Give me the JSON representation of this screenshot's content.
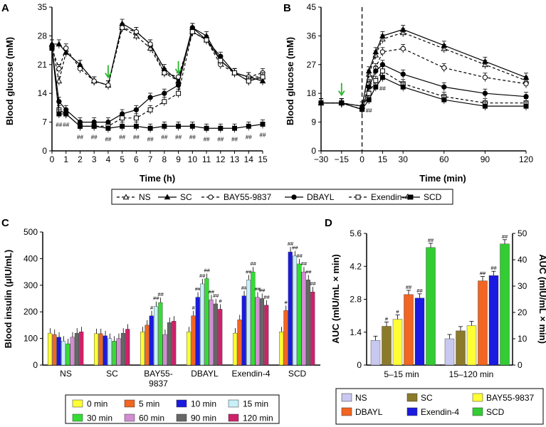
{
  "colors": {
    "axis": "#000000",
    "marker_white": "#ffffff",
    "arrow": "#2db52d",
    "bar_0": "#ffff33",
    "bar_5": "#f26522",
    "bar_10": "#1a1ae0",
    "bar_15": "#c8f0f8",
    "bar_30": "#33dd33",
    "bar_60": "#d28cd2",
    "bar_90": "#666666",
    "bar_120": "#d0206a",
    "auc_ns": "#c8c8f0",
    "auc_sc": "#8b7a2a",
    "auc_bay": "#ffff33",
    "auc_dbayl": "#f26522",
    "auc_exendin": "#1a1ae0",
    "auc_scd": "#33cc33"
  },
  "legend_top": {
    "items": [
      {
        "label": "NS",
        "line": "dashed",
        "marker": "triangle-open"
      },
      {
        "label": "SC",
        "line": "solid",
        "marker": "triangle-filled"
      },
      {
        "label": "BAY55-9837",
        "line": "dashed",
        "marker": "circle-open"
      },
      {
        "label": "DBAYL",
        "line": "solid",
        "marker": "circle-filled"
      },
      {
        "label": "Exendin-4",
        "line": "dashed",
        "marker": "square-open"
      },
      {
        "label": "SCD",
        "line": "solid",
        "marker": "square-filled"
      }
    ]
  },
  "legend_c": {
    "items": [
      {
        "label": "0 min",
        "color_key": "bar_0"
      },
      {
        "label": "5 min",
        "color_key": "bar_5"
      },
      {
        "label": "10 min",
        "color_key": "bar_10"
      },
      {
        "label": "15 min",
        "color_key": "bar_15"
      },
      {
        "label": "30 min",
        "color_key": "bar_30"
      },
      {
        "label": "60 min",
        "color_key": "bar_60"
      },
      {
        "label": "90 min",
        "color_key": "bar_90"
      },
      {
        "label": "120 min",
        "color_key": "bar_120"
      }
    ]
  },
  "legend_d": {
    "items": [
      {
        "label": "NS",
        "color_key": "auc_ns"
      },
      {
        "label": "SC",
        "color_key": "auc_sc"
      },
      {
        "label": "BAY55-9837",
        "color_key": "auc_bay"
      },
      {
        "label": "DBAYL",
        "color_key": "auc_dbayl"
      },
      {
        "label": "Exendin-4",
        "color_key": "auc_exendin"
      },
      {
        "label": "SCD",
        "color_key": "auc_scd"
      }
    ]
  },
  "chart_data": [
    {
      "panel": "A",
      "type": "line",
      "xlabel": "Time (h)",
      "ylabel": "Blood glucose (mM)",
      "xlim": [
        0,
        15
      ],
      "ylim": [
        0,
        35
      ],
      "xticks": [
        0,
        1,
        2,
        3,
        4,
        5,
        6,
        7,
        8,
        9,
        10,
        11,
        12,
        13,
        14,
        15
      ],
      "yticks": [
        0,
        7,
        14,
        21,
        28,
        35
      ],
      "arrows_at": [
        4,
        9
      ],
      "annotation_text": "##",
      "annotation_x": [
        0.5,
        1,
        2,
        3,
        4,
        5,
        6,
        7,
        8,
        9,
        10,
        11,
        12,
        13,
        14,
        15
      ],
      "series": [
        {
          "name": "NS",
          "x": [
            0,
            0.5,
            1,
            2,
            3,
            4,
            5,
            6,
            7,
            8,
            9,
            10,
            11,
            12,
            13,
            14,
            15
          ],
          "y": [
            26,
            17,
            24,
            21,
            17,
            16,
            30,
            28,
            25,
            19,
            17,
            29,
            27,
            22,
            19,
            18,
            18
          ]
        },
        {
          "name": "SC",
          "x": [
            0,
            0.5,
            1,
            2,
            3,
            4,
            5,
            6,
            7,
            8,
            9,
            10,
            11,
            12,
            13,
            14,
            15
          ],
          "y": [
            26,
            26,
            24,
            21,
            17,
            16,
            31,
            29,
            26,
            20,
            17,
            30,
            28,
            22,
            19,
            18,
            17
          ]
        },
        {
          "name": "BAY55-9837",
          "x": [
            0,
            0.5,
            1,
            2,
            3,
            4,
            5,
            6,
            7,
            8,
            9,
            10,
            11,
            12,
            13,
            14,
            15
          ],
          "y": [
            25,
            20,
            25,
            20,
            17,
            16,
            30,
            29,
            26,
            19,
            18,
            29,
            27,
            21,
            19,
            18,
            19
          ]
        },
        {
          "name": "DBAYL",
          "x": [
            0,
            0.5,
            1,
            2,
            3,
            4,
            5,
            6,
            7,
            8,
            9,
            10,
            11,
            12,
            13,
            14,
            15
          ],
          "y": [
            25,
            12,
            10,
            7,
            7,
            7,
            9,
            10,
            13,
            14,
            16,
            30,
            27,
            23,
            19,
            17,
            18
          ]
        },
        {
          "name": "Exendin-4",
          "x": [
            0,
            0.5,
            1,
            2,
            3,
            4,
            5,
            6,
            7,
            8,
            9,
            10,
            11,
            12,
            13,
            14,
            15
          ],
          "y": [
            25,
            10,
            9,
            6,
            6,
            6,
            8,
            8,
            10,
            12,
            14,
            29,
            27,
            22,
            19,
            17,
            18
          ]
        },
        {
          "name": "SCD",
          "x": [
            0,
            0.5,
            1,
            2,
            3,
            4,
            5,
            6,
            7,
            8,
            9,
            10,
            11,
            12,
            13,
            14,
            15
          ],
          "y": [
            25,
            9,
            9,
            6,
            6,
            5.5,
            6,
            6,
            5.5,
            6,
            6,
            6,
            5.5,
            5.5,
            5.5,
            6,
            6.5
          ]
        }
      ]
    },
    {
      "panel": "B",
      "type": "line",
      "xlabel": "Time (min)",
      "ylabel": "Blood glucose (mM)",
      "xlim": [
        -30,
        120
      ],
      "ylim": [
        0,
        45
      ],
      "xticks": [
        -30,
        -15,
        0,
        15,
        30,
        60,
        90,
        120
      ],
      "xtick_labels": [
        "−30",
        "−15",
        "0",
        "15",
        "30",
        "60",
        "90",
        "120"
      ],
      "yticks": [
        0,
        9,
        18,
        27,
        36,
        45
      ],
      "arrows_at": [
        -15
      ],
      "annotation_text": "##",
      "annotation_x": [
        5,
        15
      ],
      "series": [
        {
          "name": "NS",
          "x": [
            -30,
            -15,
            0,
            5,
            10,
            15,
            30,
            60,
            90,
            120
          ],
          "y": [
            15,
            15,
            14,
            24,
            30,
            35,
            37,
            32,
            27,
            22
          ]
        },
        {
          "name": "SC",
          "x": [
            -30,
            -15,
            0,
            5,
            10,
            15,
            30,
            60,
            90,
            120
          ],
          "y": [
            15,
            15,
            14,
            25,
            31,
            36,
            38,
            33,
            28,
            23
          ]
        },
        {
          "name": "BAY55-9837",
          "x": [
            -30,
            -15,
            0,
            5,
            10,
            15,
            30,
            60,
            90,
            120
          ],
          "y": [
            15,
            15,
            13,
            21,
            26,
            31,
            32,
            26,
            23,
            21
          ]
        },
        {
          "name": "DBAYL",
          "x": [
            -30,
            -15,
            0,
            5,
            10,
            15,
            30,
            60,
            90,
            120
          ],
          "y": [
            15,
            15,
            13,
            20,
            25,
            27,
            24,
            20,
            18,
            17
          ]
        },
        {
          "name": "Exendin-4",
          "x": [
            -30,
            -15,
            0,
            5,
            10,
            15,
            30,
            60,
            90,
            120
          ],
          "y": [
            15,
            15,
            13,
            18,
            22,
            25,
            21,
            17,
            15,
            15
          ]
        },
        {
          "name": "SCD",
          "x": [
            -30,
            -15,
            0,
            5,
            10,
            15,
            30,
            60,
            90,
            120
          ],
          "y": [
            15,
            15,
            13,
            16,
            20,
            23,
            20,
            16,
            14,
            14
          ]
        }
      ]
    },
    {
      "panel": "C",
      "type": "bar",
      "ylabel": "Blood insulin (μIU/mL)",
      "ylim": [
        0,
        500
      ],
      "yticks": [
        0,
        100,
        200,
        300,
        400,
        500
      ],
      "categories": [
        "NS",
        "SC",
        "BAY55-\n9837",
        "DBAYL",
        "Exendin-4",
        "SCD"
      ],
      "time_points": [
        "0 min",
        "5 min",
        "10 min",
        "15 min",
        "30 min",
        "60 min",
        "90 min",
        "120 min"
      ],
      "values": [
        [
          120,
          115,
          105,
          90,
          80,
          105,
          120,
          125
        ],
        [
          118,
          118,
          110,
          100,
          90,
          100,
          120,
          135
        ],
        [
          125,
          150,
          185,
          220,
          235,
          115,
          160,
          165
        ],
        [
          125,
          185,
          255,
          305,
          325,
          245,
          230,
          210
        ],
        [
          120,
          170,
          260,
          320,
          350,
          255,
          250,
          225
        ],
        [
          125,
          205,
          425,
          410,
          380,
          350,
          320,
          275
        ]
      ],
      "annotations": [
        [
          "",
          "",
          "",
          "",
          "",
          "",
          "",
          ""
        ],
        [
          "",
          "",
          "",
          "",
          "",
          "",
          "",
          ""
        ],
        [
          "",
          "",
          "#",
          "##",
          "##",
          "",
          "",
          ""
        ],
        [
          "",
          "#",
          "##",
          "##",
          "##",
          "##",
          "##",
          "#"
        ],
        [
          "",
          "",
          "##",
          "##",
          "##",
          "##",
          "##",
          "##"
        ],
        [
          "",
          "#",
          "##",
          "##",
          "##",
          "##",
          "##",
          "##"
        ]
      ]
    },
    {
      "panel": "D-left",
      "type": "bar",
      "ylabel": "AUC (mIU/mL × min)",
      "ylim": [
        0,
        5.6
      ],
      "yticks": [
        0,
        1.4,
        2.8,
        4.2,
        5.6
      ],
      "ytick_labels": [
        "0",
        "1.4",
        "2.8",
        "4.2",
        "5.6"
      ],
      "xlabel": "5–15 min",
      "categories": [
        "NS",
        "SC",
        "BAY55-9837",
        "DBAYL",
        "Exendin-4",
        "SCD"
      ],
      "values": [
        1.05,
        1.65,
        1.95,
        3.0,
        2.85,
        5.0
      ],
      "annotations": [
        "",
        "#",
        "#",
        "##",
        "##",
        "##"
      ]
    },
    {
      "panel": "D-right",
      "type": "bar",
      "ylabel": "AUC (mIU/mL × min)",
      "ylim": [
        0,
        50
      ],
      "yticks": [
        0,
        10,
        20,
        30,
        40,
        50
      ],
      "xlabel": "15–120 min",
      "categories": [
        "NS",
        "SC",
        "BAY55-9837",
        "DBAYL",
        "Exendin-4",
        "SCD"
      ],
      "values": [
        10,
        13,
        15,
        32,
        34,
        46
      ],
      "annotations": [
        "",
        "",
        "",
        "##",
        "##",
        "##"
      ]
    }
  ],
  "panel_letters": [
    "A",
    "B",
    "C",
    "D"
  ]
}
